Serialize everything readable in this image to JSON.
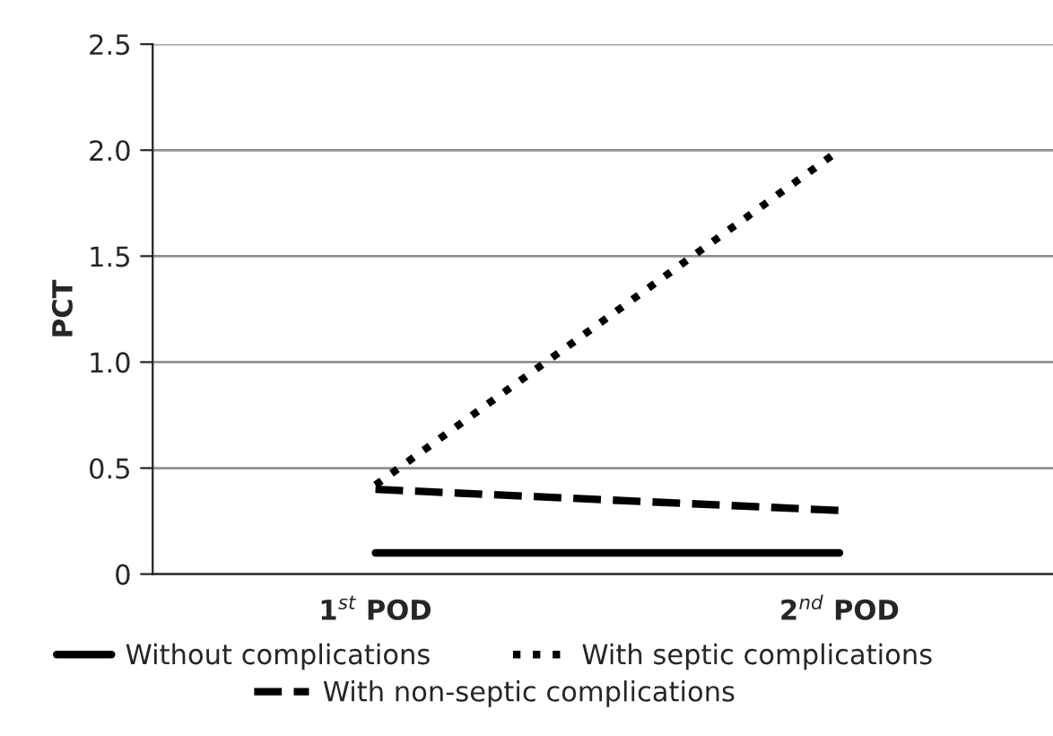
{
  "chart_data": {
    "type": "line",
    "ylabel": "PCT",
    "categories": [
      "1$^{st}$ POD",
      "2$^{nd}$ POD"
    ],
    "series": [
      {
        "name": "Without complications",
        "color": "#000000",
        "line_style": "solid",
        "values": [
          0.1,
          0.1
        ]
      },
      {
        "name": "With septic complications",
        "color": "#000000",
        "line_style": "dotted",
        "values": [
          0.42,
          2.0
        ]
      },
      {
        "name": "With non-septic complications",
        "color": "#000000",
        "line_style": "dashed",
        "values": [
          0.4,
          0.3
        ]
      }
    ],
    "ylim": [
      0,
      2.5
    ],
    "yticks": [
      0,
      {
        "value": 0.5,
        "label": "0.5"
      },
      {
        "value": 1.0,
        "label": "1.0"
      },
      {
        "value": 1.5,
        "label": "1.5"
      },
      {
        "value": 2.0,
        "label": "2.0"
      },
      {
        "value": 2.5,
        "label": "2.5"
      }
    ],
    "grid": "y",
    "legend": "bottom",
    "marker": "none"
  }
}
